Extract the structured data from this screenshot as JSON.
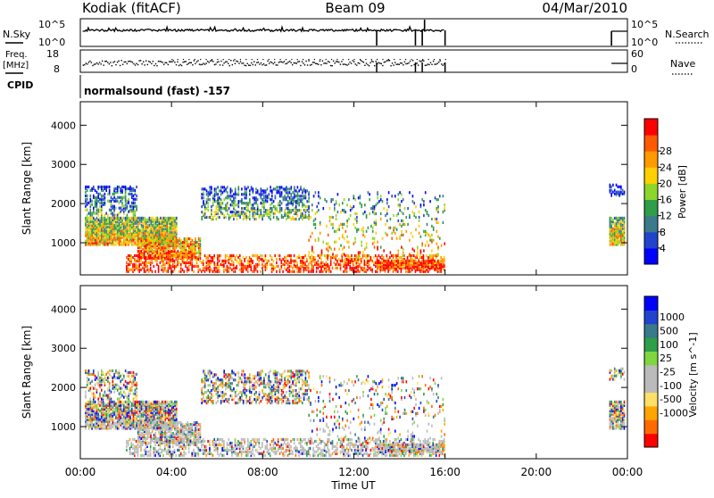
{
  "header": {
    "station": "Kodiak (fitACF)",
    "beam": "Beam 09",
    "date": "04/Mar/2010"
  },
  "left_labels": {
    "nsky": "N.Sky",
    "freq": "Freq.",
    "freq_unit": "[MHz]",
    "cpid": "CPID"
  },
  "right_labels": {
    "nsearch": "N.Search",
    "nave": "Nave"
  },
  "cpid_text": "normalsound (fast) -157",
  "noise_ticks_left": [
    "10^5",
    "10^0"
  ],
  "noise_ticks_right": [
    "10^5",
    "10^0"
  ],
  "freq_ticks_left": [
    "18",
    "8"
  ],
  "freq_ticks_right": [
    "60",
    "0"
  ],
  "x_axis": {
    "label": "Time UT",
    "ticks": [
      "00:00",
      "04:00",
      "08:00",
      "12:00",
      "16:00",
      "20:00",
      "00:00"
    ]
  },
  "colors": {
    "power": [
      "#0000ff",
      "#2244cc",
      "#3a7a8a",
      "#2e9e4a",
      "#8fd62a",
      "#ffd000",
      "#ff9a00",
      "#ff5a00",
      "#ff0000"
    ],
    "velocity": [
      "#ff0000",
      "#ff6a00",
      "#ffa500",
      "#ffe066",
      "#bbbbbb",
      "#bbbbbb",
      "#7fd640",
      "#2e9e4a",
      "#3a7a8a",
      "#2244cc",
      "#0000ff"
    ]
  },
  "chart_data": [
    {
      "type": "heatmap",
      "ylabel": "Slant Range [km]",
      "xlabel": "",
      "xlim": [
        0,
        24
      ],
      "ylim": [
        180,
        4600
      ],
      "yticks": [
        1000,
        2000,
        3000,
        4000
      ],
      "colorbar": {
        "label": "Power [dB]",
        "ticks": [
          "4",
          "8",
          "12",
          "16",
          "20",
          "24",
          "28"
        ],
        "range": [
          0,
          32
        ]
      },
      "scatter_bands": [
        {
          "t0": 0.2,
          "t1": 4.2,
          "r0": 950,
          "r1": 1650,
          "density": 0.9
        },
        {
          "t0": 0.2,
          "t1": 2.5,
          "r0": 1700,
          "r1": 2450,
          "density": 0.45
        },
        {
          "t0": 2.5,
          "t1": 5.3,
          "r0": 600,
          "r1": 1100,
          "density": 0.8
        },
        {
          "t0": 5.3,
          "t1": 10.0,
          "r0": 1600,
          "r1": 2450,
          "density": 0.45
        },
        {
          "t0": 2.0,
          "t1": 16.0,
          "r0": 260,
          "r1": 700,
          "density": 0.5
        },
        {
          "t0": 13.0,
          "t1": 16.0,
          "r0": 350,
          "r1": 550,
          "density": 0.9
        },
        {
          "t0": 10.0,
          "t1": 16.0,
          "r0": 700,
          "r1": 2300,
          "density": 0.12
        },
        {
          "t0": 23.2,
          "t1": 23.9,
          "r0": 950,
          "r1": 1650,
          "density": 0.85
        },
        {
          "t0": 23.2,
          "t1": 23.9,
          "r0": 2200,
          "r1": 2500,
          "density": 0.4
        }
      ]
    },
    {
      "type": "heatmap",
      "ylabel": "Slant Range [km]",
      "xlabel": "Time UT",
      "xlim": [
        0,
        24
      ],
      "ylim": [
        180,
        4600
      ],
      "yticks": [
        1000,
        2000,
        3000,
        4000
      ],
      "colorbar": {
        "label": "Velocity [m s^-1]",
        "ticks": [
          "1000",
          "500",
          "100",
          "25",
          "-25",
          "-100",
          "-500",
          "-1000"
        ],
        "range": [
          -1000,
          1000
        ]
      },
      "scatter_bands": [
        {
          "t0": 0.2,
          "t1": 4.2,
          "r0": 950,
          "r1": 1650,
          "density": 0.85
        },
        {
          "t0": 0.2,
          "t1": 2.5,
          "r0": 1700,
          "r1": 2450,
          "density": 0.4
        },
        {
          "t0": 2.5,
          "t1": 5.3,
          "r0": 600,
          "r1": 1100,
          "density": 0.7
        },
        {
          "t0": 5.3,
          "t1": 10.0,
          "r0": 1600,
          "r1": 2450,
          "density": 0.4
        },
        {
          "t0": 2.0,
          "t1": 16.0,
          "r0": 260,
          "r1": 700,
          "density": 0.45
        },
        {
          "t0": 13.0,
          "t1": 16.0,
          "r0": 350,
          "r1": 550,
          "density": 0.85
        },
        {
          "t0": 10.0,
          "t1": 16.0,
          "r0": 700,
          "r1": 2300,
          "density": 0.1
        },
        {
          "t0": 23.2,
          "t1": 23.9,
          "r0": 950,
          "r1": 1650,
          "density": 0.8
        },
        {
          "t0": 23.2,
          "t1": 23.9,
          "r0": 2200,
          "r1": 2500,
          "density": 0.4
        }
      ]
    }
  ]
}
